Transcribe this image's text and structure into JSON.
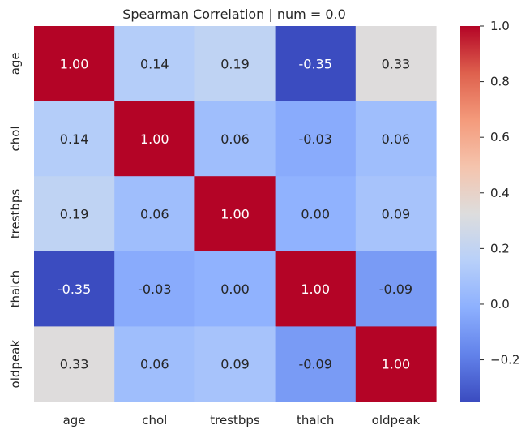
{
  "chart_data": {
    "type": "heatmap",
    "title": "Spearman Correlation | num = 0.0",
    "x_labels": [
      "age",
      "chol",
      "trestbps",
      "thalch",
      "oldpeak"
    ],
    "y_labels": [
      "age",
      "chol",
      "trestbps",
      "thalch",
      "oldpeak"
    ],
    "values": [
      [
        1.0,
        0.14,
        0.19,
        -0.35,
        0.33
      ],
      [
        0.14,
        1.0,
        0.06,
        -0.03,
        0.06
      ],
      [
        0.19,
        0.06,
        1.0,
        0.0,
        0.09
      ],
      [
        -0.35,
        -0.03,
        0.0,
        1.0,
        -0.09
      ],
      [
        0.33,
        0.06,
        0.09,
        -0.09,
        1.0
      ]
    ],
    "cell_labels": [
      [
        "1.00",
        "0.14",
        "0.19",
        "-0.35",
        "0.33"
      ],
      [
        "0.14",
        "1.00",
        "0.06",
        "-0.03",
        "0.06"
      ],
      [
        "0.19",
        "0.06",
        "1.00",
        "0.00",
        "0.09"
      ],
      [
        "-0.35",
        "-0.03",
        "0.00",
        "1.00",
        "-0.09"
      ],
      [
        "0.33",
        "0.06",
        "0.09",
        "-0.09",
        "1.00"
      ]
    ],
    "colormap": "coolwarm",
    "vmin": -0.35,
    "vmax": 1.0,
    "colorbar_ticks": [
      -0.2,
      0.0,
      0.2,
      0.4,
      0.6,
      0.8,
      1.0
    ],
    "colorbar_tick_labels": [
      "−0.2",
      "0.0",
      "0.2",
      "0.4",
      "0.6",
      "0.8",
      "1.0"
    ],
    "colorbar": "right",
    "grid": false
  }
}
